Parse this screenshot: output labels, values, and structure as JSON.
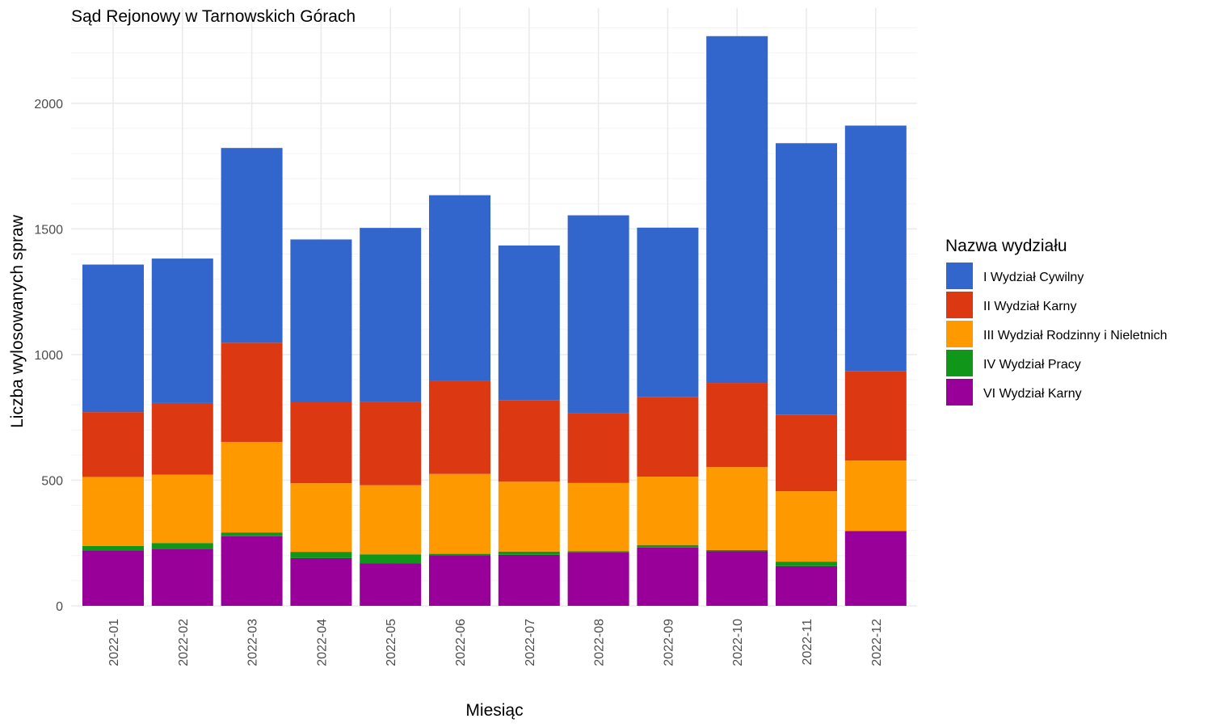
{
  "chart_data": {
    "type": "bar",
    "stacked": true,
    "title": "Sąd Rejonowy w Tarnowskich Górach",
    "xlabel": "Miesiąc",
    "ylabel": "Liczba wylosowanych spraw",
    "ylim": [
      0,
      2350
    ],
    "yticks": [
      0,
      500,
      1000,
      1500,
      2000
    ],
    "grid": true,
    "legend_title": "Nazwa wydziału",
    "legend_position": "right",
    "categories": [
      "2022-01",
      "2022-02",
      "2022-03",
      "2022-04",
      "2022-05",
      "2022-06",
      "2022-07",
      "2022-08",
      "2022-09",
      "2022-10",
      "2022-11",
      "2022-12"
    ],
    "series": [
      {
        "name": "VI Wydział Karny",
        "color": "#990099",
        "values": [
          220,
          225,
          277,
          190,
          170,
          202,
          203,
          212,
          232,
          217,
          158,
          298
        ]
      },
      {
        "name": "IV Wydział Pracy",
        "color": "#109618",
        "values": [
          18,
          25,
          15,
          25,
          35,
          5,
          13,
          5,
          10,
          5,
          18,
          0
        ]
      },
      {
        "name": "III Wydział Rodzinny i Nieletnich",
        "color": "#FF9900",
        "values": [
          275,
          272,
          360,
          273,
          275,
          318,
          278,
          272,
          272,
          330,
          280,
          280
        ]
      },
      {
        "name": "II Wydział Karny",
        "color": "#DC3912",
        "values": [
          258,
          285,
          395,
          322,
          333,
          370,
          325,
          278,
          318,
          335,
          305,
          355
        ]
      },
      {
        "name": "I Wydział Cywilny",
        "color": "#3366CC",
        "values": [
          587,
          575,
          775,
          648,
          691,
          739,
          615,
          787,
          673,
          1380,
          1080,
          978
        ]
      }
    ],
    "legend_order": [
      "I Wydział Cywilny",
      "II Wydział Karny",
      "III Wydział Rodzinny i Nieletnich",
      "IV Wydział Pracy",
      "VI Wydział Karny"
    ]
  }
}
